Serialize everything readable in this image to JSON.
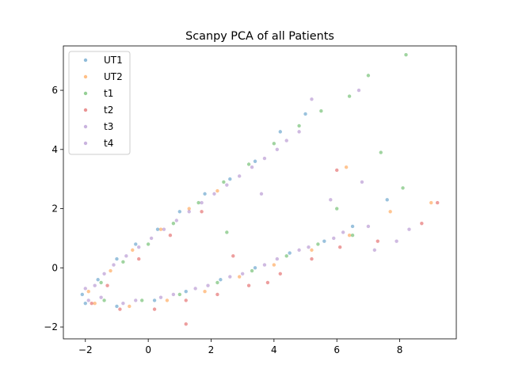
{
  "chart_data": {
    "type": "scatter",
    "title": "Scanpy PCA of all Patients",
    "xlabel": "",
    "ylabel": "",
    "xlim": [
      -2.7,
      9.8
    ],
    "ylim": [
      -2.4,
      7.5
    ],
    "xticks": [
      -2,
      0,
      2,
      4,
      6,
      8
    ],
    "yticks": [
      -2,
      0,
      2,
      4,
      6
    ],
    "grid": false,
    "legend_position": "upper-left",
    "series": [
      {
        "name": "UT1",
        "color": "#1f77b4",
        "points": [
          [
            -2.1,
            -0.9
          ],
          [
            -1.6,
            -0.4
          ],
          [
            -1.0,
            0.3
          ],
          [
            -0.4,
            0.8
          ],
          [
            0.3,
            1.3
          ],
          [
            1.0,
            1.9
          ],
          [
            1.8,
            2.5
          ],
          [
            2.6,
            3.0
          ],
          [
            3.4,
            3.6
          ],
          [
            -2.0,
            -1.2
          ],
          [
            -1.0,
            -1.3
          ],
          [
            0.2,
            -1.1
          ],
          [
            1.2,
            -0.8
          ],
          [
            2.3,
            -0.4
          ],
          [
            3.4,
            0.0
          ],
          [
            4.5,
            0.5
          ],
          [
            5.6,
            0.9
          ],
          [
            6.5,
            1.4
          ],
          [
            7.6,
            2.3
          ],
          [
            4.2,
            4.6
          ],
          [
            5.0,
            5.2
          ]
        ]
      },
      {
        "name": "UT2",
        "color": "#ff7f0e",
        "points": [
          [
            -1.9,
            -0.8
          ],
          [
            -1.2,
            -0.1
          ],
          [
            -0.5,
            0.6
          ],
          [
            0.4,
            1.3
          ],
          [
            1.3,
            2.0
          ],
          [
            2.2,
            2.6
          ],
          [
            -1.7,
            -1.2
          ],
          [
            -0.6,
            -1.3
          ],
          [
            0.6,
            -1.1
          ],
          [
            1.8,
            -0.8
          ],
          [
            2.9,
            -0.3
          ],
          [
            4.0,
            0.1
          ],
          [
            5.2,
            0.6
          ],
          [
            6.4,
            1.1
          ],
          [
            9.0,
            2.2
          ],
          [
            6.3,
            3.4
          ],
          [
            7.7,
            1.9
          ]
        ]
      },
      {
        "name": "t1",
        "color": "#2ca02c",
        "points": [
          [
            -1.5,
            -0.5
          ],
          [
            -0.8,
            0.2
          ],
          [
            0.0,
            0.8
          ],
          [
            0.8,
            1.5
          ],
          [
            1.6,
            2.2
          ],
          [
            2.4,
            2.9
          ],
          [
            3.2,
            3.5
          ],
          [
            4.0,
            4.2
          ],
          [
            4.8,
            4.8
          ],
          [
            5.5,
            5.3
          ],
          [
            6.4,
            5.8
          ],
          [
            7.0,
            6.5
          ],
          [
            8.2,
            7.2
          ],
          [
            -1.4,
            -1.1
          ],
          [
            -0.2,
            -1.1
          ],
          [
            1.0,
            -0.9
          ],
          [
            2.2,
            -0.5
          ],
          [
            3.3,
            -0.1
          ],
          [
            4.4,
            0.4
          ],
          [
            5.4,
            0.8
          ],
          [
            6.5,
            1.1
          ],
          [
            7.4,
            3.9
          ],
          [
            8.1,
            2.7
          ],
          [
            6.0,
            2.0
          ],
          [
            2.5,
            1.2
          ]
        ]
      },
      {
        "name": "t2",
        "color": "#d62728",
        "points": [
          [
            -1.8,
            -1.2
          ],
          [
            -0.9,
            -1.4
          ],
          [
            0.2,
            -1.4
          ],
          [
            1.2,
            -1.1
          ],
          [
            2.2,
            -0.9
          ],
          [
            3.2,
            -0.6
          ],
          [
            4.2,
            -0.2
          ],
          [
            5.2,
            0.3
          ],
          [
            6.1,
            0.7
          ],
          [
            -1.3,
            -0.6
          ],
          [
            -0.3,
            0.3
          ],
          [
            0.7,
            1.1
          ],
          [
            1.7,
            1.9
          ],
          [
            2.7,
            0.4
          ],
          [
            3.8,
            -0.5
          ],
          [
            8.7,
            1.5
          ],
          [
            7.3,
            0.9
          ],
          [
            6.0,
            3.3
          ],
          [
            1.2,
            -1.9
          ],
          [
            9.2,
            2.2
          ]
        ]
      },
      {
        "name": "t3",
        "color": "#9467bd",
        "points": [
          [
            -2.0,
            -0.7
          ],
          [
            -1.4,
            -0.2
          ],
          [
            -0.7,
            0.4
          ],
          [
            0.1,
            1.0
          ],
          [
            0.9,
            1.6
          ],
          [
            1.7,
            2.2
          ],
          [
            2.5,
            2.8
          ],
          [
            3.3,
            3.4
          ],
          [
            4.1,
            4.0
          ],
          [
            4.8,
            4.6
          ],
          [
            -1.9,
            -1.1
          ],
          [
            -0.8,
            -1.2
          ],
          [
            0.4,
            -1.0
          ],
          [
            1.5,
            -0.7
          ],
          [
            2.6,
            -0.3
          ],
          [
            3.7,
            0.1
          ],
          [
            4.8,
            0.6
          ],
          [
            5.9,
            1.0
          ],
          [
            7.0,
            1.4
          ],
          [
            7.9,
            0.9
          ],
          [
            6.8,
            2.9
          ],
          [
            5.2,
            5.7
          ]
        ]
      },
      {
        "name": "t4",
        "color": "#9467bd",
        "points": [
          [
            -1.7,
            -0.6
          ],
          [
            -1.1,
            0.1
          ],
          [
            -0.3,
            0.7
          ],
          [
            0.5,
            1.3
          ],
          [
            1.3,
            1.9
          ],
          [
            2.1,
            2.5
          ],
          [
            2.9,
            3.1
          ],
          [
            3.7,
            3.7
          ],
          [
            4.4,
            4.3
          ],
          [
            -1.5,
            -1.0
          ],
          [
            -0.4,
            -1.1
          ],
          [
            0.8,
            -0.9
          ],
          [
            1.9,
            -0.6
          ],
          [
            3.0,
            -0.2
          ],
          [
            4.1,
            0.3
          ],
          [
            5.1,
            0.7
          ],
          [
            6.2,
            1.2
          ],
          [
            7.2,
            0.6
          ],
          [
            8.3,
            1.3
          ],
          [
            5.8,
            2.3
          ],
          [
            3.6,
            2.5
          ],
          [
            6.7,
            6.0
          ]
        ]
      }
    ]
  }
}
